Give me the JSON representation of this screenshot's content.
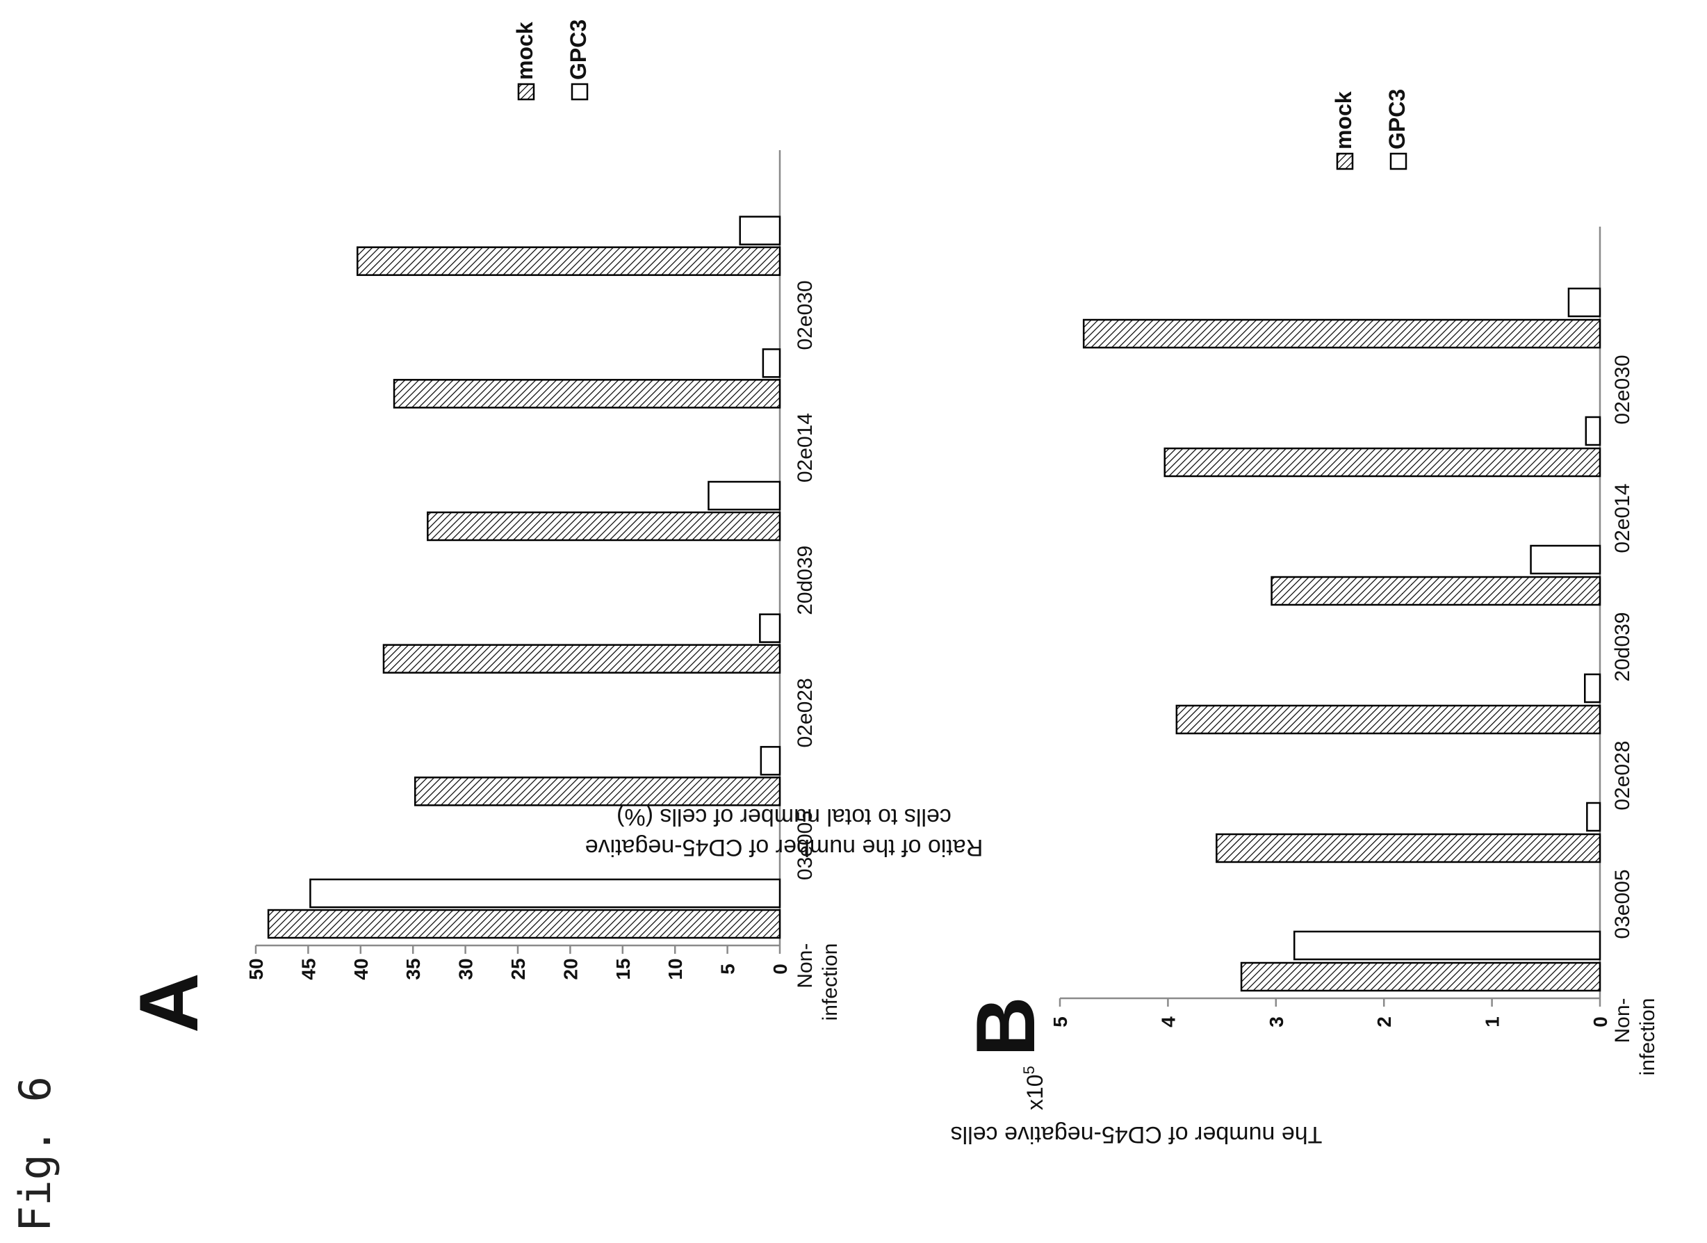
{
  "figure_label": "Fig. 6",
  "colors": {
    "mock_fill": "hatched",
    "gpc3_fill": "#ffffff",
    "stroke": "#000000"
  },
  "chart_data": [
    {
      "type": "bar",
      "panel": "A",
      "orientation": "rotated 90° counter-clockwise",
      "categories": [
        "Non-\ninfection",
        "03e005",
        "02e028",
        "20d039",
        "02e014",
        "02e030"
      ],
      "series": [
        {
          "name": "mock",
          "values": [
            48.8,
            34.8,
            37.8,
            33.6,
            36.8,
            40.3
          ]
        },
        {
          "name": "GPC3",
          "values": [
            44.8,
            1.8,
            1.9,
            6.8,
            1.6,
            3.8
          ]
        }
      ],
      "ylabel": "Ratio of the number of CD45-negative cells to total number of cells (%)",
      "ylim": [
        0,
        50
      ],
      "yticks": [
        0,
        5,
        10,
        15,
        20,
        25,
        30,
        35,
        40,
        45,
        50
      ],
      "legend": [
        "mock",
        "GPC3"
      ]
    },
    {
      "type": "bar",
      "panel": "B",
      "orientation": "rotated 90° counter-clockwise",
      "categories": [
        "Non-\ninfection",
        "03e005",
        "02e028",
        "20d039",
        "02e014",
        "02e030"
      ],
      "series": [
        {
          "name": "mock",
          "values": [
            3.32,
            3.55,
            3.92,
            3.04,
            4.03,
            4.78
          ]
        },
        {
          "name": "GPC3",
          "values": [
            2.83,
            0.12,
            0.14,
            0.64,
            0.13,
            0.29
          ]
        }
      ],
      "ylabel": "The number of CD45-negative cells",
      "ymultiplier_base": "x10",
      "ymultiplier_exp": "5",
      "ylim": [
        0,
        5
      ],
      "yticks": [
        0,
        1,
        2,
        3,
        4,
        5
      ],
      "legend": [
        "mock",
        "GPC3"
      ]
    }
  ]
}
